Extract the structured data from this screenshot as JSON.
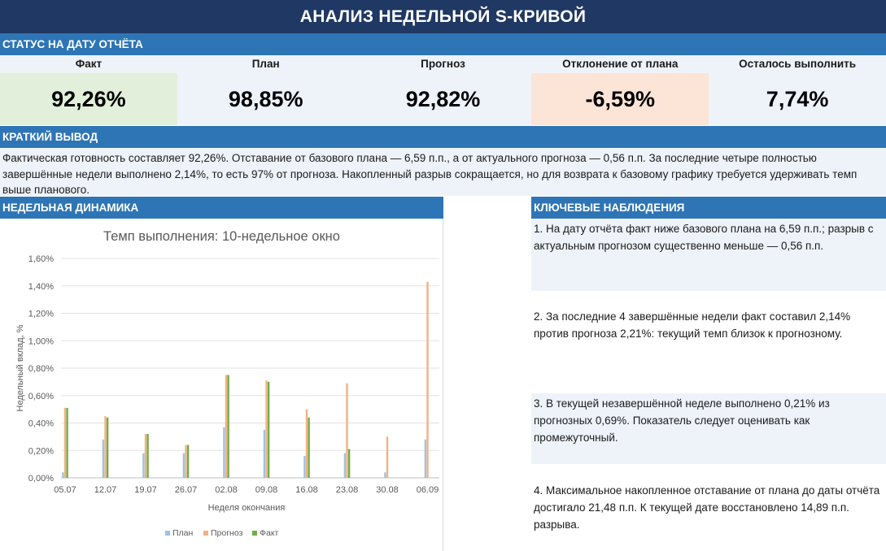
{
  "header": {
    "title": "АНАЛИЗ НЕДЕЛЬНОЙ S-КРИВОЙ"
  },
  "status": {
    "heading": "СТАТУС НА ДАТУ ОТЧЁТА",
    "kpis": [
      {
        "label": "Факт",
        "value": "92,26%",
        "bg": "#e2efda"
      },
      {
        "label": "План",
        "value": "98,85%",
        "bg": "#eef3fa"
      },
      {
        "label": "Прогноз",
        "value": "92,82%",
        "bg": "#eef3fa"
      },
      {
        "label": "Отклонение от плана",
        "value": "-6,59%",
        "bg": "#fce4d6"
      },
      {
        "label": "Осталось выполнить",
        "value": "7,74%",
        "bg": "#eef3fa"
      }
    ]
  },
  "summary": {
    "heading": "КРАТКИЙ ВЫВОД",
    "text": "Фактическая готовность составляет 92,26%. Отставание от базового плана — 6,59 п.п., а от актуального прогноза — 0,56 п.п. За последние четыре полностью завершённые недели выполнено 2,14%, то есть 97% от прогноза. Накопленный разрыв сокращается, но для возврата к базовому графику требуется удерживать темп выше планового."
  },
  "dynamics": {
    "heading": "НЕДЕЛЬНАЯ ДИНАМИКА"
  },
  "observations": {
    "heading": "КЛЮЧЕВЫЕ НАБЛЮДЕНИЯ",
    "items": [
      "1. На дату отчёта факт ниже базового плана на 6,59 п.п.; разрыв с актуальным прогнозом существенно меньше — 0,56 п.п.",
      "2. За последние 4 завершённые недели факт составил 2,14% против прогноза 2,21%: текущий темп близок к прогнозному.",
      "3. В текущей незавершённой неделе выполнено 0,21% из прогнозных 0,69%. Показатель следует оценивать как промежуточный.",
      "4. Максимальное накопленное отставание от плана до даты отчёта достигало 21,48 п.п. К текущей дате восстановлено 14,89 п.п. разрыва."
    ]
  },
  "colors": {
    "plan": "#9dc3e6",
    "forecast": "#f4b183",
    "fact": "#70ad47",
    "header": "#1f3864",
    "section": "#2e75b6"
  },
  "chart_data": {
    "type": "bar",
    "title": "Темп выполнения: 10-недельное окно",
    "xlabel": "Неделя окончания",
    "ylabel": "Недельный вклад, %",
    "ylim": [
      0,
      1.6
    ],
    "yticks": [
      "0,00%",
      "0,20%",
      "0,40%",
      "0,60%",
      "0,80%",
      "1,00%",
      "1,20%",
      "1,40%",
      "1,60%"
    ],
    "categories": [
      "05.07",
      "12.07",
      "19.07",
      "26.07",
      "02.08",
      "09.08",
      "16.08",
      "23.08",
      "30.08",
      "06.09"
    ],
    "series": [
      {
        "name": "План",
        "values": [
          0.04,
          0.28,
          0.18,
          0.18,
          0.37,
          0.35,
          0.16,
          0.18,
          0.04,
          0.28
        ]
      },
      {
        "name": "Прогноз",
        "values": [
          0.51,
          0.45,
          0.32,
          0.24,
          0.75,
          0.71,
          0.5,
          0.69,
          0.3,
          1.43
        ]
      },
      {
        "name": "Факт",
        "values": [
          0.51,
          0.44,
          0.32,
          0.24,
          0.75,
          0.7,
          0.44,
          0.21,
          0.0,
          0.0
        ]
      }
    ],
    "legend": "bottom",
    "grid": true
  }
}
